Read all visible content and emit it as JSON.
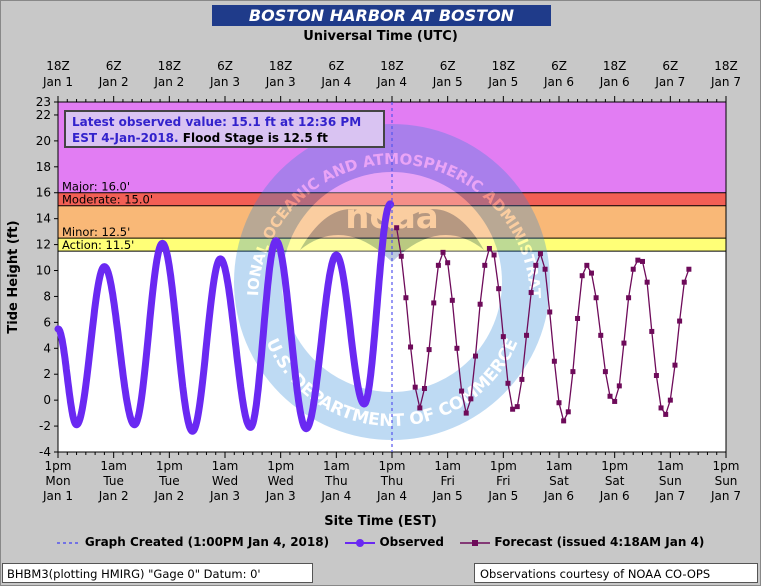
{
  "header": {
    "title": "BOSTON HARBOR AT BOSTON",
    "top_axis_title": "Universal Time (UTC)",
    "bottom_axis_title": "Site Time (EST)"
  },
  "info_box": {
    "line1": "Latest observed value: 15.1 ft at 12:36 PM",
    "line2_a": "EST 4-Jan-2018.",
    "line2_b": "Flood Stage is 12.5 ft"
  },
  "legend": {
    "created": "Graph Created (1:00PM Jan 4, 2018)",
    "observed": "Observed",
    "forecast": "Forecast (issued 4:18AM Jan 4)"
  },
  "footer": {
    "left": "BHBM3(plotting HMIRG) \"Gage 0\" Datum: 0'",
    "right": "Observations courtesy of NOAA CO-OPS"
  },
  "watermark": {
    "ring_text": "NATIONAL OCEANIC AND ATMOSPHERIC ADMINISTRATION",
    "bottom_text": "U.S. DEPARTMENT OF COMMERCE",
    "center": "noaa"
  },
  "colors": {
    "major": "#e27df3",
    "moderate": "#f25f55",
    "minor": "#f9b877",
    "action": "#ffff77",
    "normal": "#ffffff",
    "observed": "#6a29f2",
    "forecast": "#6e0b5a",
    "created_line": "#5555ee"
  },
  "chart_data": {
    "type": "line",
    "title": "BOSTON HARBOR AT BOSTON",
    "xlabel": "Site Time (EST)",
    "ylabel": "Tide Height (ft)",
    "ylim": [
      -4,
      23
    ],
    "xlim": [
      "2018-01-01T13:00",
      "2018-01-07T13:00"
    ],
    "yticks": [
      -4,
      -2,
      0,
      2,
      4,
      6,
      8,
      10,
      12,
      14,
      16,
      18,
      20,
      22,
      23
    ],
    "grid": false,
    "x_ticks_bottom": [
      [
        "1pm",
        "Mon",
        "Jan 1"
      ],
      [
        "1am",
        "Tue",
        "Jan 2"
      ],
      [
        "1pm",
        "Tue",
        "Jan 2"
      ],
      [
        "1am",
        "Wed",
        "Jan 3"
      ],
      [
        "1pm",
        "Wed",
        "Jan 3"
      ],
      [
        "1am",
        "Thu",
        "Jan 4"
      ],
      [
        "1pm",
        "Thu",
        "Jan 4"
      ],
      [
        "1am",
        "Fri",
        "Jan 5"
      ],
      [
        "1pm",
        "Fri",
        "Jan 5"
      ],
      [
        "1am",
        "Sat",
        "Jan 6"
      ],
      [
        "1pm",
        "Sat",
        "Jan 6"
      ],
      [
        "1am",
        "Sun",
        "Jan 7"
      ],
      [
        "1pm",
        "Sun",
        "Jan 7"
      ]
    ],
    "x_ticks_top": [
      [
        "18Z",
        "Jan 1"
      ],
      [
        "6Z",
        "Jan 2"
      ],
      [
        "18Z",
        "Jan 2"
      ],
      [
        "6Z",
        "Jan 3"
      ],
      [
        "18Z",
        "Jan 3"
      ],
      [
        "6Z",
        "Jan 4"
      ],
      [
        "18Z",
        "Jan 4"
      ],
      [
        "6Z",
        "Jan 5"
      ],
      [
        "18Z",
        "Jan 5"
      ],
      [
        "6Z",
        "Jan 6"
      ],
      [
        "18Z",
        "Jan 6"
      ],
      [
        "6Z",
        "Jan 7"
      ],
      [
        "18Z",
        "Jan 7"
      ]
    ],
    "flood_categories": [
      {
        "name": "Major",
        "label": "Major: 16.0'",
        "from": 16.0,
        "to": 23
      },
      {
        "name": "Moderate",
        "label": "Moderate: 15.0'",
        "from": 15.0,
        "to": 16.0
      },
      {
        "name": "Minor",
        "label": "Minor: 12.5'",
        "from": 12.5,
        "to": 15.0
      },
      {
        "name": "Action",
        "label": "Action: 11.5'",
        "from": 11.5,
        "to": 12.5
      }
    ],
    "graph_created": "2018-01-04T13:00",
    "annotations": [
      {
        "text": "15.1 ft",
        "x": "2018-01-04T12:36",
        "y": 15.1
      },
      {
        "text": "13.3 ft",
        "x": "2018-01-04T14:00",
        "y": 13.3
      }
    ],
    "observed_extrema": [
      {
        "time": "2018-01-01T13:00",
        "value": 5.5
      },
      {
        "time": "2018-01-01T17:00",
        "value": -1.9
      },
      {
        "time": "2018-01-01T23:00",
        "value": 10.3
      },
      {
        "time": "2018-01-02T05:30",
        "value": -1.9
      },
      {
        "time": "2018-01-02T11:30",
        "value": 12.1
      },
      {
        "time": "2018-01-02T18:00",
        "value": -2.4
      },
      {
        "time": "2018-01-03T00:00",
        "value": 10.9
      },
      {
        "time": "2018-01-03T06:30",
        "value": -2.1
      },
      {
        "time": "2018-01-03T12:00",
        "value": 12.3
      },
      {
        "time": "2018-01-03T18:30",
        "value": -2.2
      },
      {
        "time": "2018-01-04T01:00",
        "value": 11.2
      },
      {
        "time": "2018-01-04T07:00",
        "value": -0.3
      },
      {
        "time": "2018-01-04T12:36",
        "value": 15.1
      }
    ],
    "forecast": [
      {
        "time": "2018-01-04T14:00",
        "value": 13.3
      },
      {
        "time": "2018-01-04T15:00",
        "value": 11.1
      },
      {
        "time": "2018-01-04T16:00",
        "value": 7.9
      },
      {
        "time": "2018-01-04T17:00",
        "value": 4.1
      },
      {
        "time": "2018-01-04T18:00",
        "value": 1.0
      },
      {
        "time": "2018-01-04T19:00",
        "value": -0.6
      },
      {
        "time": "2018-01-04T20:00",
        "value": 0.9
      },
      {
        "time": "2018-01-04T21:00",
        "value": 3.9
      },
      {
        "time": "2018-01-04T22:00",
        "value": 7.5
      },
      {
        "time": "2018-01-04T23:00",
        "value": 10.4
      },
      {
        "time": "2018-01-05T00:00",
        "value": 11.4
      },
      {
        "time": "2018-01-05T01:00",
        "value": 10.6
      },
      {
        "time": "2018-01-05T02:00",
        "value": 7.7
      },
      {
        "time": "2018-01-05T03:00",
        "value": 4.0
      },
      {
        "time": "2018-01-05T04:00",
        "value": 0.7
      },
      {
        "time": "2018-01-05T05:00",
        "value": -1.0
      },
      {
        "time": "2018-01-05T06:00",
        "value": 0.1
      },
      {
        "time": "2018-01-05T07:00",
        "value": 3.4
      },
      {
        "time": "2018-01-05T08:00",
        "value": 7.4
      },
      {
        "time": "2018-01-05T09:00",
        "value": 10.4
      },
      {
        "time": "2018-01-05T10:00",
        "value": 11.7
      },
      {
        "time": "2018-01-05T11:00",
        "value": 11.2
      },
      {
        "time": "2018-01-05T12:00",
        "value": 8.6
      },
      {
        "time": "2018-01-05T13:00",
        "value": 4.9
      },
      {
        "time": "2018-01-05T14:00",
        "value": 1.3
      },
      {
        "time": "2018-01-05T15:00",
        "value": -0.7
      },
      {
        "time": "2018-01-05T16:00",
        "value": -0.5
      },
      {
        "time": "2018-01-05T17:00",
        "value": 1.6
      },
      {
        "time": "2018-01-05T18:00",
        "value": 5.0
      },
      {
        "time": "2018-01-05T19:00",
        "value": 8.3
      },
      {
        "time": "2018-01-05T20:00",
        "value": 10.4
      },
      {
        "time": "2018-01-05T21:00",
        "value": 11.3
      },
      {
        "time": "2018-01-05T22:00",
        "value": 10.1
      },
      {
        "time": "2018-01-05T23:00",
        "value": 6.8
      },
      {
        "time": "2018-01-06T00:00",
        "value": 3.0
      },
      {
        "time": "2018-01-06T01:00",
        "value": -0.2
      },
      {
        "time": "2018-01-06T02:00",
        "value": -1.6
      },
      {
        "time": "2018-01-06T03:00",
        "value": -0.9
      },
      {
        "time": "2018-01-06T04:00",
        "value": 2.2
      },
      {
        "time": "2018-01-06T05:00",
        "value": 6.3
      },
      {
        "time": "2018-01-06T06:00",
        "value": 9.6
      },
      {
        "time": "2018-01-06T07:00",
        "value": 10.4
      },
      {
        "time": "2018-01-06T08:00",
        "value": 9.8
      },
      {
        "time": "2018-01-06T09:00",
        "value": 7.9
      },
      {
        "time": "2018-01-06T10:00",
        "value": 5.0
      },
      {
        "time": "2018-01-06T11:00",
        "value": 2.2
      },
      {
        "time": "2018-01-06T12:00",
        "value": 0.3
      },
      {
        "time": "2018-01-06T13:00",
        "value": -0.1
      },
      {
        "time": "2018-01-06T14:00",
        "value": 1.1
      },
      {
        "time": "2018-01-06T15:00",
        "value": 4.4
      },
      {
        "time": "2018-01-06T16:00",
        "value": 7.9
      },
      {
        "time": "2018-01-06T17:00",
        "value": 10.1
      },
      {
        "time": "2018-01-06T18:00",
        "value": 10.8
      },
      {
        "time": "2018-01-06T19:00",
        "value": 10.7
      },
      {
        "time": "2018-01-06T20:00",
        "value": 9.1
      },
      {
        "time": "2018-01-06T21:00",
        "value": 5.3
      },
      {
        "time": "2018-01-06T22:00",
        "value": 1.9
      },
      {
        "time": "2018-01-06T23:00",
        "value": -0.6
      },
      {
        "time": "2018-01-07T00:00",
        "value": -1.1
      },
      {
        "time": "2018-01-07T01:00",
        "value": 0.0
      },
      {
        "time": "2018-01-07T02:00",
        "value": 2.7
      },
      {
        "time": "2018-01-07T03:00",
        "value": 6.1
      },
      {
        "time": "2018-01-07T04:00",
        "value": 9.1
      },
      {
        "time": "2018-01-07T05:00",
        "value": 10.1
      }
    ]
  }
}
